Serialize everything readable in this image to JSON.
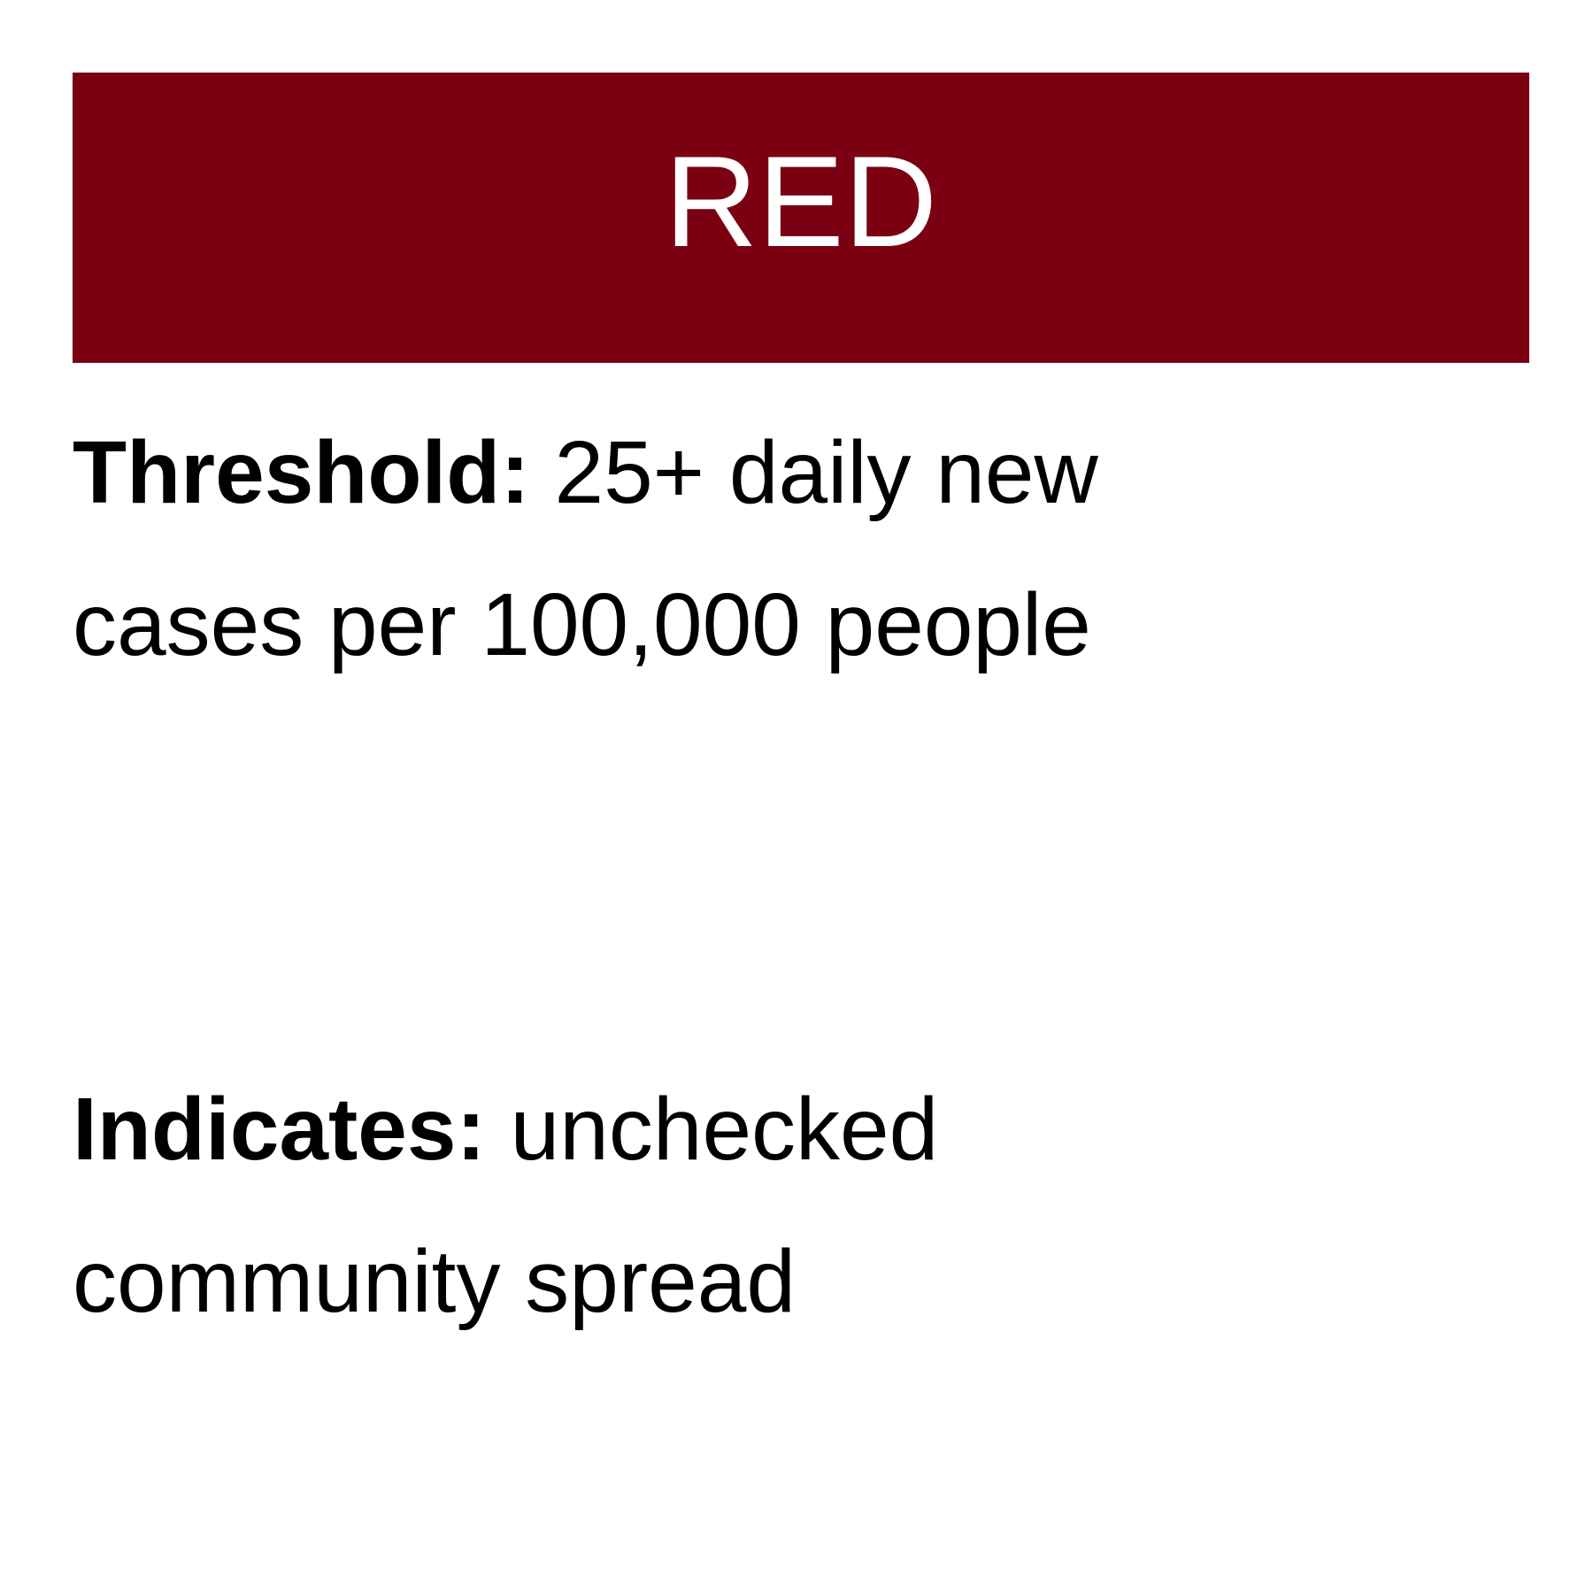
{
  "level": {
    "title": "RED",
    "color": "#7a0012"
  },
  "threshold": {
    "label": "Threshold:",
    "text": "25+ daily new cases per 100,000 people"
  },
  "indicates": {
    "label": "Indicates:",
    "text": "unchecked community spread"
  }
}
